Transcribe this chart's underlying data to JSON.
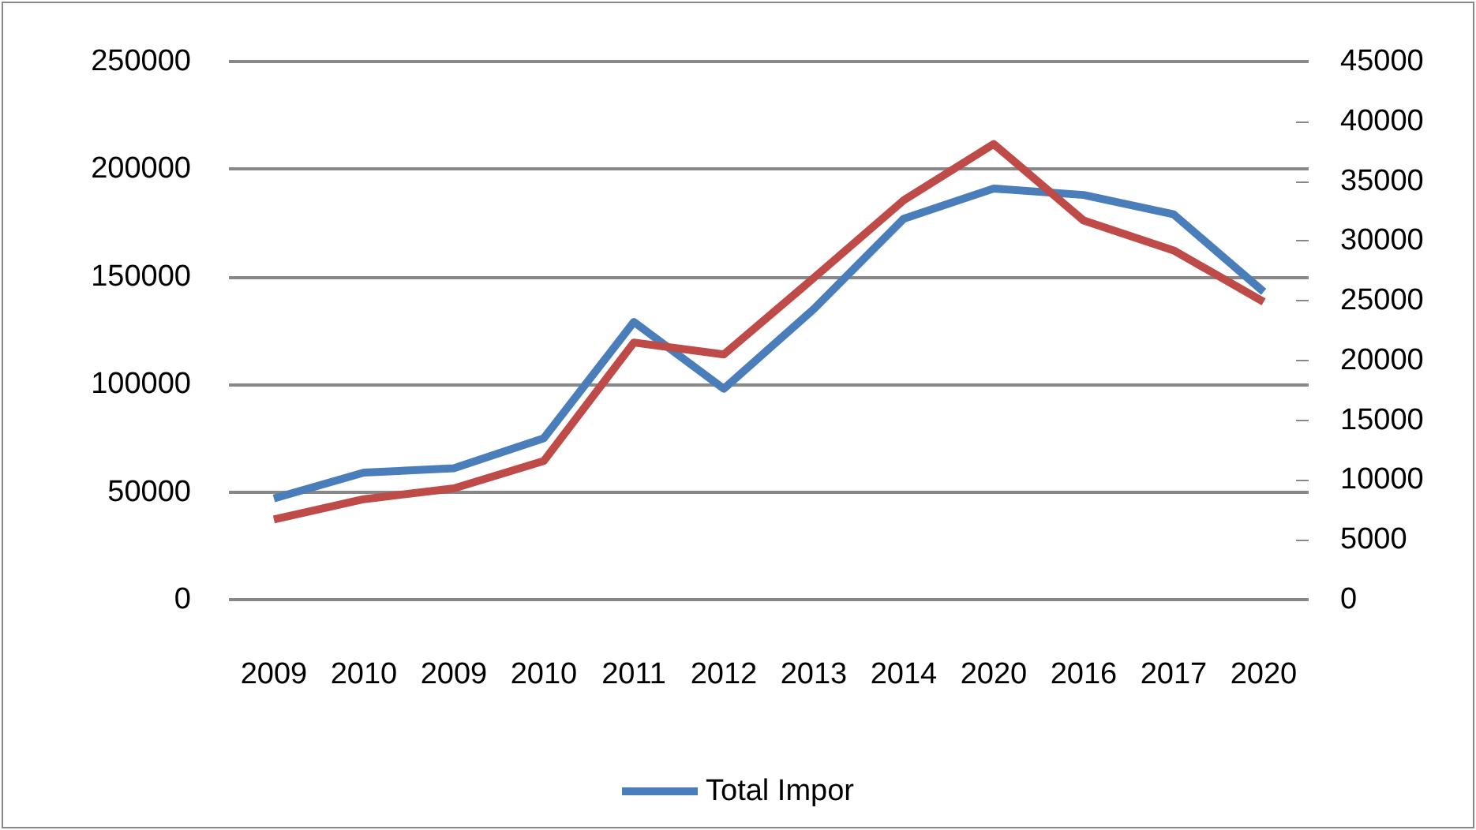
{
  "chart_data": {
    "type": "line",
    "categories": [
      "2009",
      "2010",
      "2009",
      "2010",
      "2011",
      "2012",
      "2013",
      "2014",
      "2020",
      "2016",
      "2017",
      "2020"
    ],
    "series": [
      {
        "name": "Total Impor",
        "color": "#4a7ebb",
        "values": [
          47000,
          59000,
          61000,
          75000,
          129000,
          98000,
          135000,
          177000,
          191000,
          188000,
          179000,
          143000
        ]
      },
      {
        "color": "#be4b48",
        "axis": "y2",
        "values": [
          6700,
          8400,
          9300,
          11600,
          21500,
          20500,
          26900,
          33400,
          38100,
          31700,
          29200,
          24900
        ]
      }
    ],
    "ylim": [
      0,
      250000
    ],
    "yticks": [
      0,
      50000,
      100000,
      150000,
      200000,
      250000
    ],
    "y2lim": [
      0,
      45000
    ],
    "y2ticks": [
      0,
      5000,
      10000,
      15000,
      20000,
      25000,
      30000,
      35000,
      40000,
      45000
    ],
    "grid": "y",
    "legend": "bottom",
    "marker": "none",
    "line_style": "solid"
  }
}
